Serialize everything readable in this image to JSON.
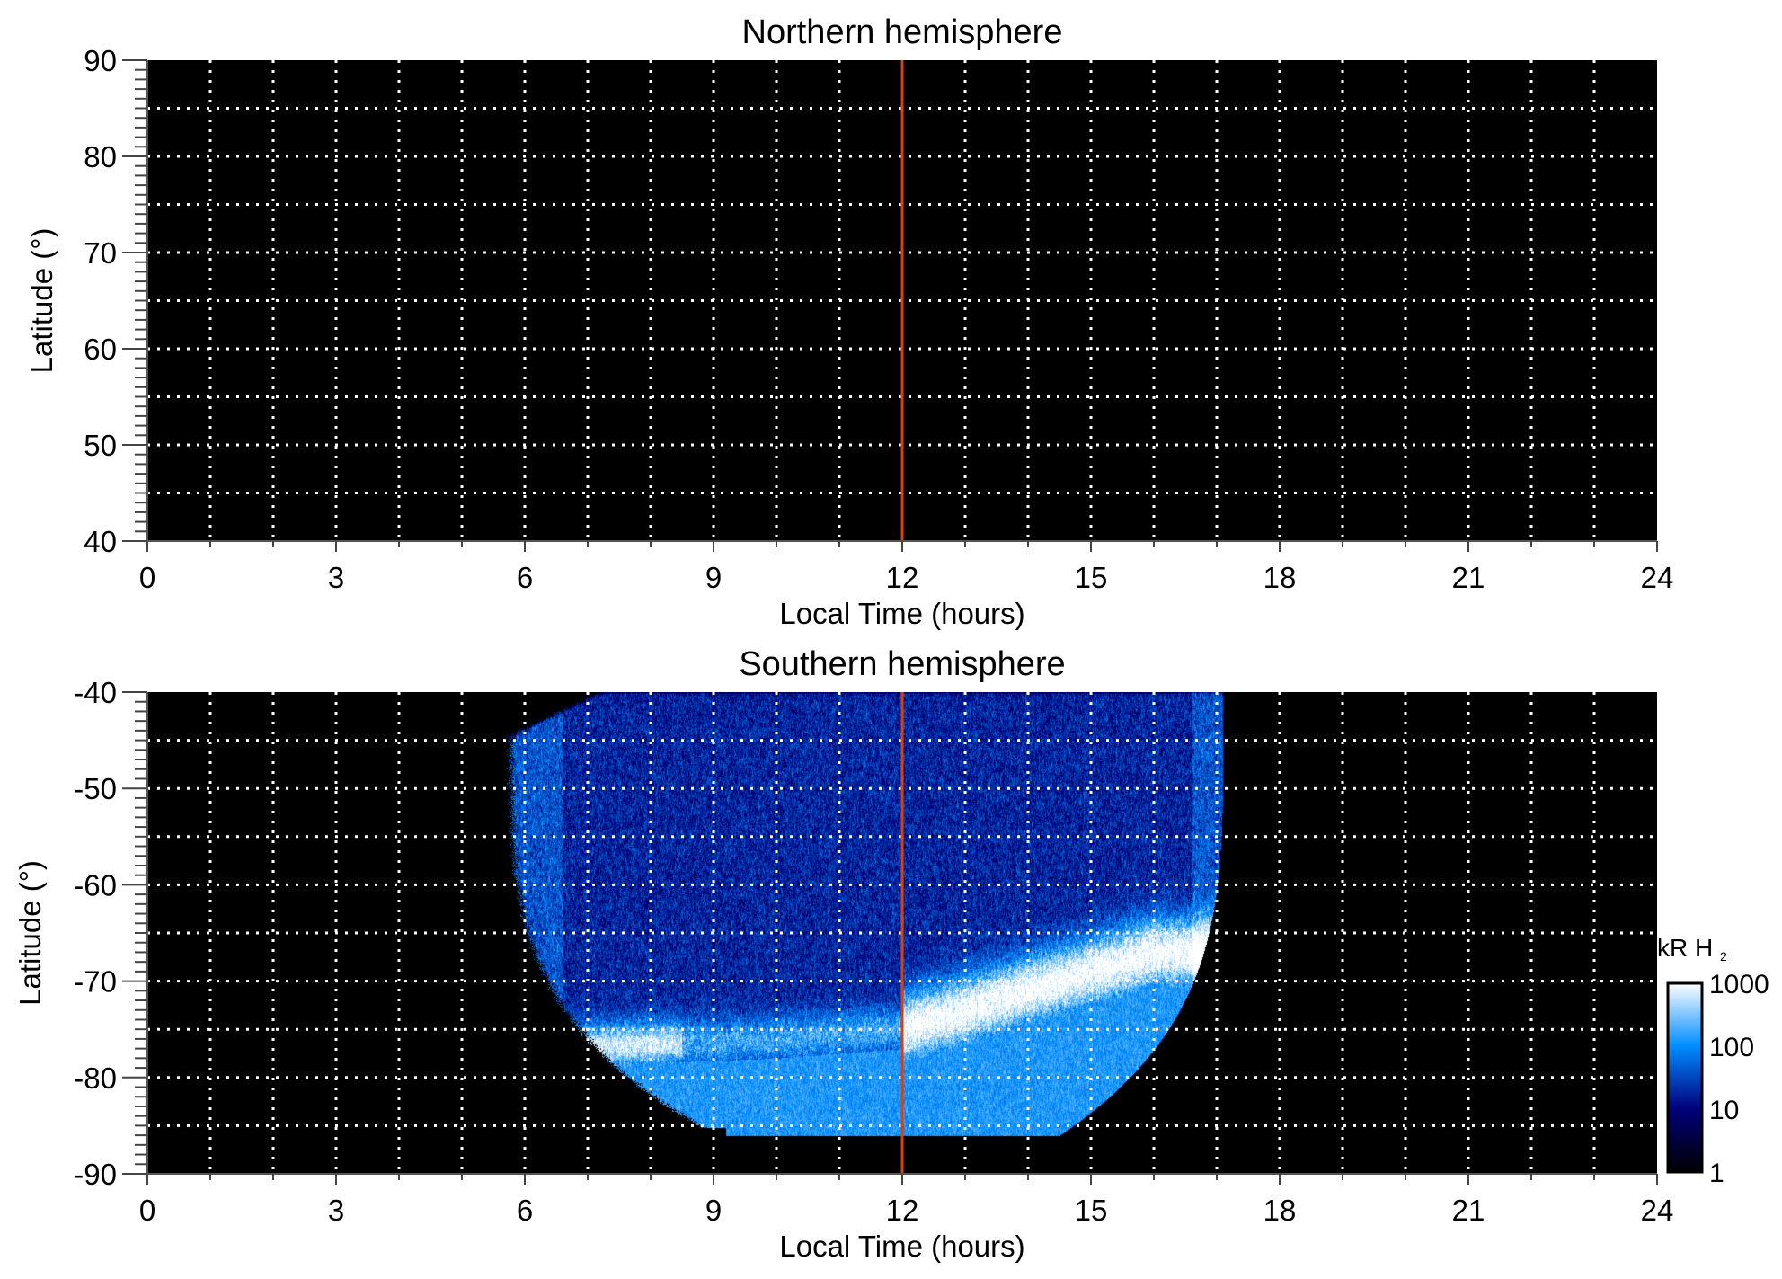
{
  "chart_data": [
    {
      "type": "heatmap",
      "title": "Northern hemisphere",
      "xlabel": "Local Time (hours)",
      "ylabel": "Latitude (°)",
      "xlim": [
        0,
        24
      ],
      "ylim": [
        40,
        90
      ],
      "xticks": [
        "0",
        "3",
        "6",
        "9",
        "12",
        "15",
        "18",
        "21",
        "24"
      ],
      "yticks": [
        "40",
        "50",
        "60",
        "70",
        "80",
        "90"
      ],
      "x_grid_step": 1,
      "y_grid_step": 5,
      "grid": true,
      "marker_line": {
        "x": 12,
        "color": "#d8400c"
      },
      "emission": "none"
    },
    {
      "type": "heatmap",
      "title": "Southern hemisphere",
      "xlabel": "Local Time (hours)",
      "ylabel": "Latitude (°)",
      "xlim": [
        0,
        24
      ],
      "ylim": [
        -90,
        -40
      ],
      "xticks": [
        "0",
        "3",
        "6",
        "9",
        "12",
        "15",
        "18",
        "21",
        "24"
      ],
      "yticks": [
        "-90",
        "-80",
        "-70",
        "-60",
        "-50",
        "-40"
      ],
      "x_grid_step": 1,
      "y_grid_step": 5,
      "grid": true,
      "marker_line": {
        "x": 12,
        "color": "#d8400c"
      },
      "coverage": {
        "local_time_range": [
          5.7,
          17.1
        ],
        "latitude_range": [
          -86,
          -40
        ]
      },
      "auroral_oval": [
        {
          "lt": 6.5,
          "lat": -77
        },
        {
          "lt": 8,
          "lat": -76.5
        },
        {
          "lt": 10,
          "lat": -76
        },
        {
          "lt": 12,
          "lat": -75
        },
        {
          "lt": 14,
          "lat": -71
        },
        {
          "lt": 16,
          "lat": -67
        }
      ],
      "colorbar": {
        "label": "kR H",
        "label_subscript": "2",
        "scale": "log",
        "range": [
          1,
          1000
        ],
        "ticks": [
          "1",
          "10",
          "100",
          "1000"
        ],
        "colors": [
          "#000000",
          "#00007a",
          "#008cff",
          "#ffffff"
        ]
      }
    }
  ]
}
